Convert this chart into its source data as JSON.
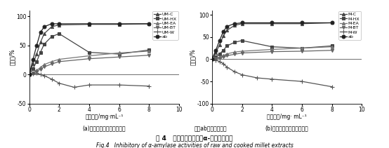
{
  "left": {
    "title": "(a)生小米提取物酶抑制作用",
    "xlabel": "质量浓度/mg·mL⁻¹",
    "ylabel": "抑制率/%",
    "ylim": [
      -50,
      110
    ],
    "yticks": [
      -50,
      0,
      50,
      100
    ],
    "xlim": [
      0,
      10
    ],
    "xticks": [
      0,
      2,
      4,
      6,
      8,
      10
    ],
    "series": [
      {
        "name": "UM-C",
        "x": [
          0,
          0.25,
          0.5,
          0.75,
          1.0,
          1.5,
          2.0,
          4.0,
          6.0,
          8.0
        ],
        "y": [
          0,
          18,
          35,
          55,
          70,
          82,
          85,
          86,
          86,
          87
        ],
        "marker": "^",
        "color": "#444444",
        "ms": 3
      },
      {
        "name": "UM-HX",
        "x": [
          0,
          0.25,
          0.5,
          0.75,
          1.0,
          1.5,
          2.0,
          4.0,
          6.0,
          8.0
        ],
        "y": [
          0,
          10,
          22,
          38,
          52,
          65,
          70,
          38,
          35,
          42
        ],
        "marker": "s",
        "color": "#444444",
        "ms": 3
      },
      {
        "name": "UM-EA",
        "x": [
          0,
          0.25,
          0.5,
          0.75,
          1.0,
          1.5,
          2.0,
          4.0,
          6.0,
          8.0
        ],
        "y": [
          0,
          3,
          7,
          12,
          17,
          22,
          26,
          32,
          37,
          40
        ],
        "marker": "^",
        "color": "#777777",
        "ms": 3
      },
      {
        "name": "UM-BT",
        "x": [
          0,
          0.25,
          0.5,
          0.75,
          1.0,
          1.5,
          2.0,
          4.0,
          6.0,
          8.0
        ],
        "y": [
          0,
          2,
          5,
          9,
          13,
          18,
          22,
          27,
          30,
          33
        ],
        "marker": "v",
        "color": "#666666",
        "ms": 3
      },
      {
        "name": "UM-W",
        "x": [
          0,
          0.25,
          0.5,
          0.75,
          1.0,
          1.5,
          2.0,
          3.0,
          4.0,
          6.0,
          8.0
        ],
        "y": [
          0,
          1,
          2,
          0,
          -2,
          -8,
          -15,
          -22,
          -18,
          -18,
          -20
        ],
        "marker": "+",
        "color": "#555555",
        "ms": 4
      },
      {
        "name": "ab",
        "x": [
          0,
          0.25,
          0.5,
          0.75,
          1.0,
          1.5,
          2.0,
          4.0,
          6.0,
          8.0
        ],
        "y": [
          0,
          25,
          50,
          72,
          82,
          87,
          87,
          87,
          87,
          87
        ],
        "marker": "o",
        "color": "#222222",
        "ms": 3.5
      }
    ]
  },
  "right": {
    "title": "(b)熟小米提取物酶抑制作用",
    "xlabel": "质量浓度/mg· mL⁻¹",
    "ylabel": "抑制率/%",
    "ylim": [
      -100,
      110
    ],
    "yticks": [
      -100,
      -50,
      0,
      50,
      100
    ],
    "xlim": [
      0,
      10
    ],
    "xticks": [
      0,
      2,
      4,
      6,
      8,
      10
    ],
    "series": [
      {
        "name": "M-C",
        "x": [
          0,
          0.25,
          0.5,
          0.75,
          1.0,
          1.5,
          2.0,
          4.0,
          6.0,
          8.0
        ],
        "y": [
          0,
          15,
          32,
          52,
          65,
          76,
          80,
          80,
          80,
          82
        ],
        "marker": "^",
        "color": "#444444",
        "ms": 3
      },
      {
        "name": "M-HX",
        "x": [
          0,
          0.25,
          0.5,
          0.75,
          1.0,
          1.5,
          2.0,
          4.0,
          6.0,
          8.0
        ],
        "y": [
          0,
          5,
          12,
          20,
          30,
          38,
          42,
          28,
          25,
          30
        ],
        "marker": "s",
        "color": "#444444",
        "ms": 3
      },
      {
        "name": "M-EA",
        "x": [
          0,
          0.25,
          0.5,
          0.75,
          1.0,
          1.5,
          2.0,
          4.0,
          6.0,
          8.0
        ],
        "y": [
          0,
          2,
          5,
          8,
          12,
          16,
          18,
          22,
          25,
          28
        ],
        "marker": "^",
        "color": "#777777",
        "ms": 3
      },
      {
        "name": "M-BT",
        "x": [
          0,
          0.25,
          0.5,
          0.75,
          1.0,
          1.5,
          2.0,
          4.0,
          6.0,
          8.0
        ],
        "y": [
          0,
          1,
          3,
          5,
          8,
          11,
          14,
          17,
          18,
          20
        ],
        "marker": "v",
        "color": "#666666",
        "ms": 3
      },
      {
        "name": "M-W",
        "x": [
          0,
          0.25,
          0.5,
          0.75,
          1.0,
          1.5,
          2.0,
          3.0,
          4.0,
          6.0,
          8.0
        ],
        "y": [
          0,
          -2,
          -5,
          -10,
          -18,
          -28,
          -35,
          -42,
          -45,
          -50,
          -62
        ],
        "marker": "+",
        "color": "#555555",
        "ms": 4
      },
      {
        "name": "ab",
        "x": [
          0,
          0.25,
          0.5,
          0.75,
          1.0,
          1.5,
          2.0,
          4.0,
          6.0,
          8.0
        ],
        "y": [
          0,
          20,
          42,
          62,
          74,
          80,
          82,
          82,
          82,
          82
        ],
        "marker": "o",
        "color": "#222222",
        "ms": 3.5
      }
    ]
  },
  "caption_zh": "图 4   生、熟小米提取物α-淠粉酶抑制率",
  "caption_en": "Fig.4   Inhibitory of α-amylase activities of raw and cooked millet extracts",
  "note": "注：ab，阿卡波糖。",
  "bg_color": "#ffffff"
}
